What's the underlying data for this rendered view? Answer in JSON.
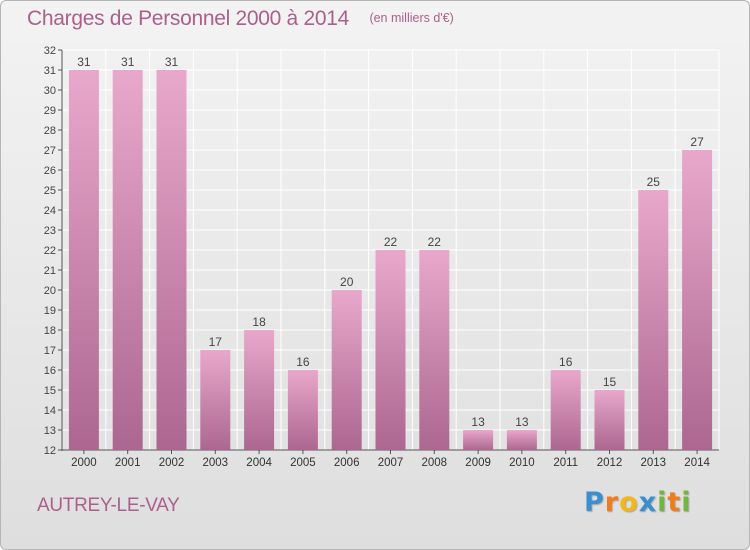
{
  "header": {
    "title": "Charges de Personnel 2000 à 2014",
    "unit": "(en milliers d'€)"
  },
  "place": "AUTREY-LE-VAY",
  "logo": {
    "text": "Proxiti",
    "letters": [
      {
        "ch": "P",
        "color": "#3a8fd0"
      },
      {
        "ch": "r",
        "color": "#ef7d1e"
      },
      {
        "ch": "o",
        "color": "#f2b81b"
      },
      {
        "ch": "x",
        "color": "#3a8fd0"
      },
      {
        "ch": "i",
        "color": "#72b63e"
      },
      {
        "ch": "t",
        "color": "#ef7d1e"
      },
      {
        "ch": "i",
        "color": "#72b63e"
      }
    ]
  },
  "colors": {
    "bar_light": "#e8a8cb",
    "bar_dark": "#ac6790",
    "accent": "#ad5f8c",
    "grid": "#ffffff",
    "axis": "#555555"
  },
  "chart_data": {
    "type": "bar",
    "categories": [
      "2000",
      "2001",
      "2002",
      "2003",
      "2004",
      "2005",
      "2006",
      "2007",
      "2008",
      "2009",
      "2010",
      "2011",
      "2012",
      "2013",
      "2014"
    ],
    "values": [
      31,
      31,
      31,
      17,
      18,
      16,
      20,
      22,
      22,
      13,
      13,
      16,
      15,
      25,
      27
    ],
    "title": "Charges de Personnel 2000 à 2014",
    "ylim": [
      12,
      32
    ],
    "yticks": [
      12,
      13,
      14,
      15,
      16,
      17,
      18,
      19,
      20,
      21,
      22,
      23,
      24,
      25,
      26,
      27,
      28,
      29,
      30,
      31,
      32
    ],
    "grid": true,
    "data_labels": true
  }
}
